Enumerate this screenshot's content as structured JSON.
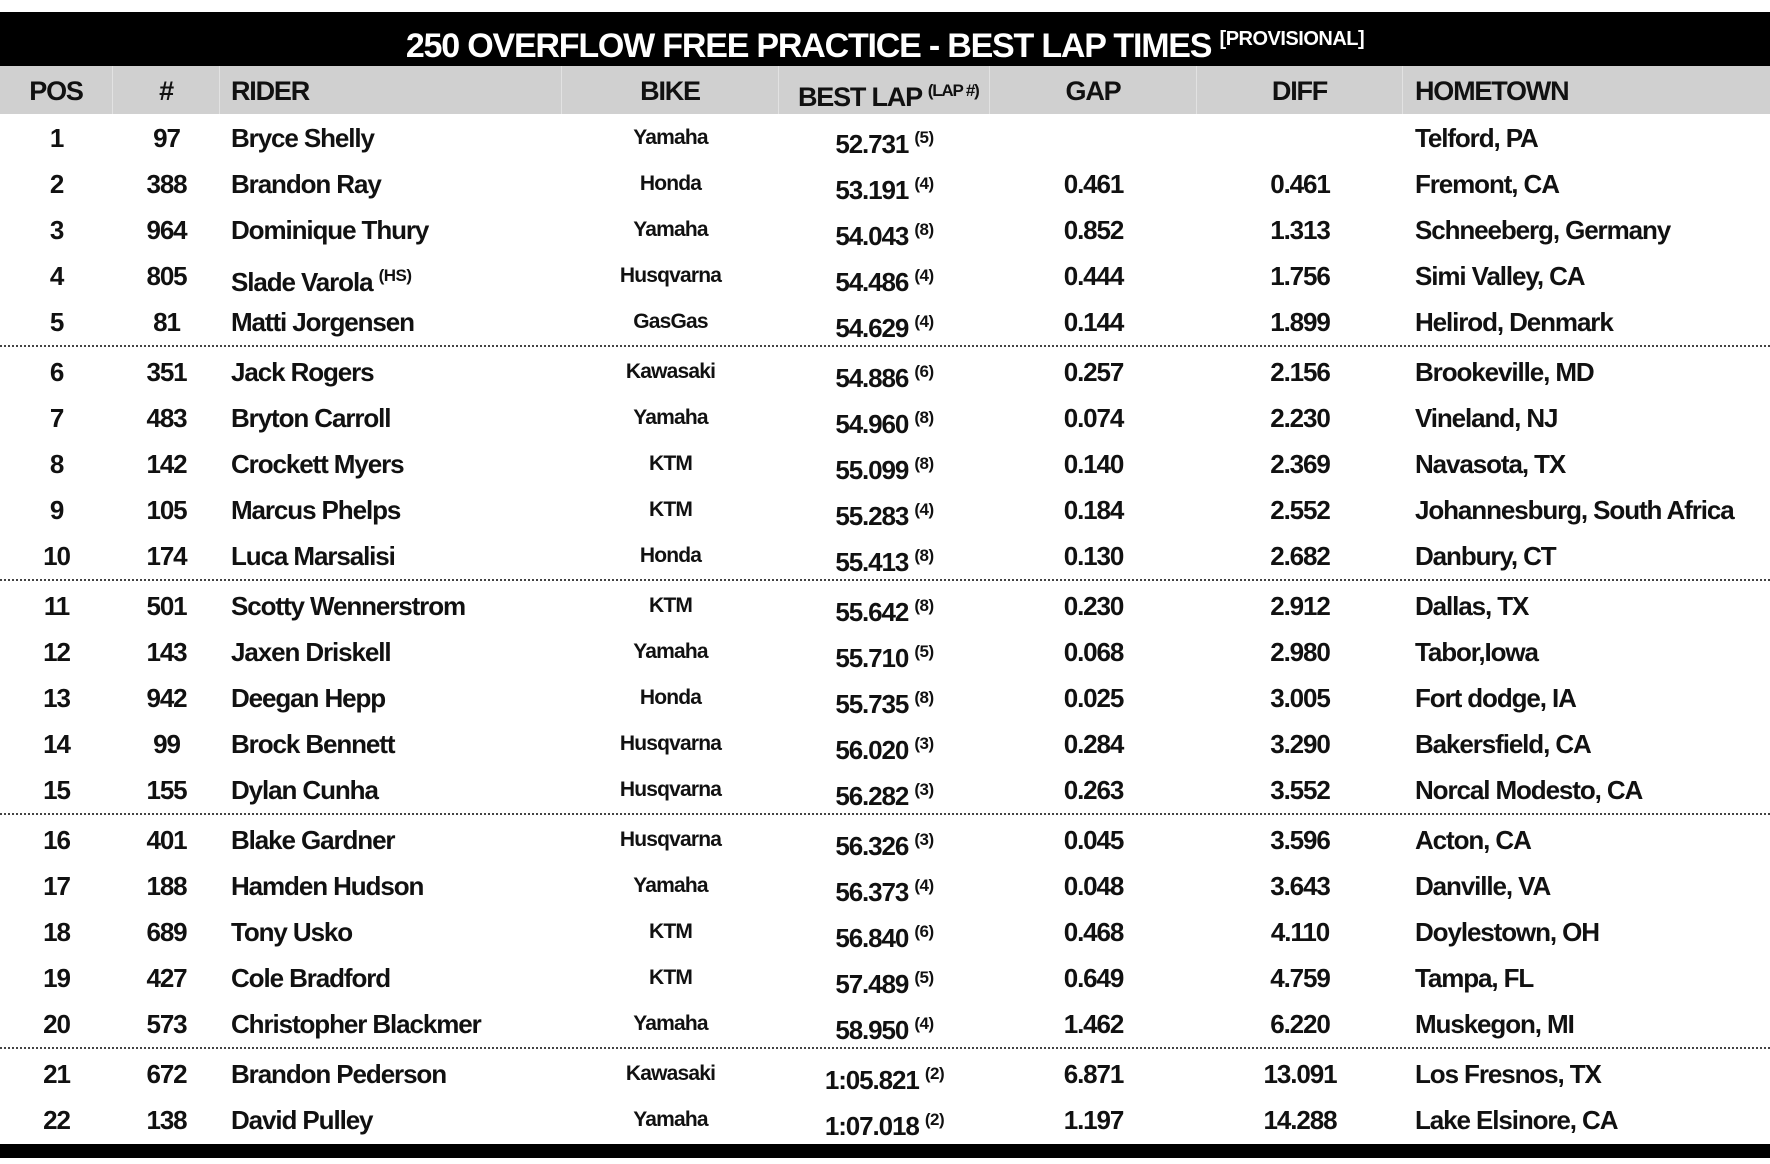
{
  "title": {
    "main": "250 OVERFLOW FREE PRACTICE - BEST LAP TIMES",
    "tag": "[PROVISIONAL]"
  },
  "columns": {
    "pos": "POS",
    "num": "#",
    "rider": "RIDER",
    "bike": "BIKE",
    "best_lap": "BEST LAP",
    "best_lap_sup": "(LAP #)",
    "gap": "GAP",
    "diff": "DIFF",
    "hometown": "HOMETOWN"
  },
  "groups_of": 5,
  "rows": [
    {
      "pos": "1",
      "num": "97",
      "rider": "Bryce Shelly",
      "rider_sup": "",
      "bike": "Yamaha",
      "lap": "52.731",
      "lap_no": "(5)",
      "gap": "",
      "diff": "",
      "hometown": "Telford, PA"
    },
    {
      "pos": "2",
      "num": "388",
      "rider": "Brandon Ray",
      "rider_sup": "",
      "bike": "Honda",
      "lap": "53.191",
      "lap_no": "(4)",
      "gap": "0.461",
      "diff": "0.461",
      "hometown": "Fremont, CA"
    },
    {
      "pos": "3",
      "num": "964",
      "rider": "Dominique Thury",
      "rider_sup": "",
      "bike": "Yamaha",
      "lap": "54.043",
      "lap_no": "(8)",
      "gap": "0.852",
      "diff": "1.313",
      "hometown": "Schneeberg, Germany"
    },
    {
      "pos": "4",
      "num": "805",
      "rider": "Slade Varola",
      "rider_sup": "(HS)",
      "bike": "Husqvarna",
      "lap": "54.486",
      "lap_no": "(4)",
      "gap": "0.444",
      "diff": "1.756",
      "hometown": "Simi Valley, CA"
    },
    {
      "pos": "5",
      "num": "81",
      "rider": "Matti Jorgensen",
      "rider_sup": "",
      "bike": "GasGas",
      "lap": "54.629",
      "lap_no": "(4)",
      "gap": "0.144",
      "diff": "1.899",
      "hometown": "Helirod, Denmark"
    },
    {
      "pos": "6",
      "num": "351",
      "rider": "Jack Rogers",
      "rider_sup": "",
      "bike": "Kawasaki",
      "lap": "54.886",
      "lap_no": "(6)",
      "gap": "0.257",
      "diff": "2.156",
      "hometown": "Brookeville, MD"
    },
    {
      "pos": "7",
      "num": "483",
      "rider": "Bryton Carroll",
      "rider_sup": "",
      "bike": "Yamaha",
      "lap": "54.960",
      "lap_no": "(8)",
      "gap": "0.074",
      "diff": "2.230",
      "hometown": "Vineland, NJ"
    },
    {
      "pos": "8",
      "num": "142",
      "rider": "Crockett Myers",
      "rider_sup": "",
      "bike": "KTM",
      "lap": "55.099",
      "lap_no": "(8)",
      "gap": "0.140",
      "diff": "2.369",
      "hometown": "Navasota, TX"
    },
    {
      "pos": "9",
      "num": "105",
      "rider": "Marcus Phelps",
      "rider_sup": "",
      "bike": "KTM",
      "lap": "55.283",
      "lap_no": "(4)",
      "gap": "0.184",
      "diff": "2.552",
      "hometown": "Johannesburg, South Africa"
    },
    {
      "pos": "10",
      "num": "174",
      "rider": "Luca Marsalisi",
      "rider_sup": "",
      "bike": "Honda",
      "lap": "55.413",
      "lap_no": "(8)",
      "gap": "0.130",
      "diff": "2.682",
      "hometown": "Danbury, CT"
    },
    {
      "pos": "11",
      "num": "501",
      "rider": "Scotty Wennerstrom",
      "rider_sup": "",
      "bike": "KTM",
      "lap": "55.642",
      "lap_no": "(8)",
      "gap": "0.230",
      "diff": "2.912",
      "hometown": "Dallas, TX"
    },
    {
      "pos": "12",
      "num": "143",
      "rider": "Jaxen Driskell",
      "rider_sup": "",
      "bike": "Yamaha",
      "lap": "55.710",
      "lap_no": "(5)",
      "gap": "0.068",
      "diff": "2.980",
      "hometown": "Tabor,Iowa"
    },
    {
      "pos": "13",
      "num": "942",
      "rider": "Deegan Hepp",
      "rider_sup": "",
      "bike": "Honda",
      "lap": "55.735",
      "lap_no": "(8)",
      "gap": "0.025",
      "diff": "3.005",
      "hometown": "Fort dodge, IA"
    },
    {
      "pos": "14",
      "num": "99",
      "rider": "Brock Bennett",
      "rider_sup": "",
      "bike": "Husqvarna",
      "lap": "56.020",
      "lap_no": "(3)",
      "gap": "0.284",
      "diff": "3.290",
      "hometown": "Bakersfield, CA"
    },
    {
      "pos": "15",
      "num": "155",
      "rider": "Dylan Cunha",
      "rider_sup": "",
      "bike": "Husqvarna",
      "lap": "56.282",
      "lap_no": "(3)",
      "gap": "0.263",
      "diff": "3.552",
      "hometown": "Norcal Modesto, CA"
    },
    {
      "pos": "16",
      "num": "401",
      "rider": "Blake Gardner",
      "rider_sup": "",
      "bike": "Husqvarna",
      "lap": "56.326",
      "lap_no": "(3)",
      "gap": "0.045",
      "diff": "3.596",
      "hometown": "Acton, CA"
    },
    {
      "pos": "17",
      "num": "188",
      "rider": "Hamden Hudson",
      "rider_sup": "",
      "bike": "Yamaha",
      "lap": "56.373",
      "lap_no": "(4)",
      "gap": "0.048",
      "diff": "3.643",
      "hometown": "Danville, VA"
    },
    {
      "pos": "18",
      "num": "689",
      "rider": "Tony Usko",
      "rider_sup": "",
      "bike": "KTM",
      "lap": "56.840",
      "lap_no": "(6)",
      "gap": "0.468",
      "diff": "4.110",
      "hometown": "Doylestown, OH"
    },
    {
      "pos": "19",
      "num": "427",
      "rider": "Cole Bradford",
      "rider_sup": "",
      "bike": "KTM",
      "lap": "57.489",
      "lap_no": "(5)",
      "gap": "0.649",
      "diff": "4.759",
      "hometown": "Tampa, FL"
    },
    {
      "pos": "20",
      "num": "573",
      "rider": "Christopher Blackmer",
      "rider_sup": "",
      "bike": "Yamaha",
      "lap": "58.950",
      "lap_no": "(4)",
      "gap": "1.462",
      "diff": "6.220",
      "hometown": "Muskegon, MI"
    },
    {
      "pos": "21",
      "num": "672",
      "rider": "Brandon Pederson",
      "rider_sup": "",
      "bike": "Kawasaki",
      "lap": "1:05.821",
      "lap_no": "(2)",
      "gap": "6.871",
      "diff": "13.091",
      "hometown": "Los Fresnos, TX"
    },
    {
      "pos": "22",
      "num": "138",
      "rider": "David Pulley",
      "rider_sup": "",
      "bike": "Yamaha",
      "lap": "1:07.018",
      "lap_no": "(2)",
      "gap": "1.197",
      "diff": "14.288",
      "hometown": "Lake Elsinore, CA"
    }
  ]
}
